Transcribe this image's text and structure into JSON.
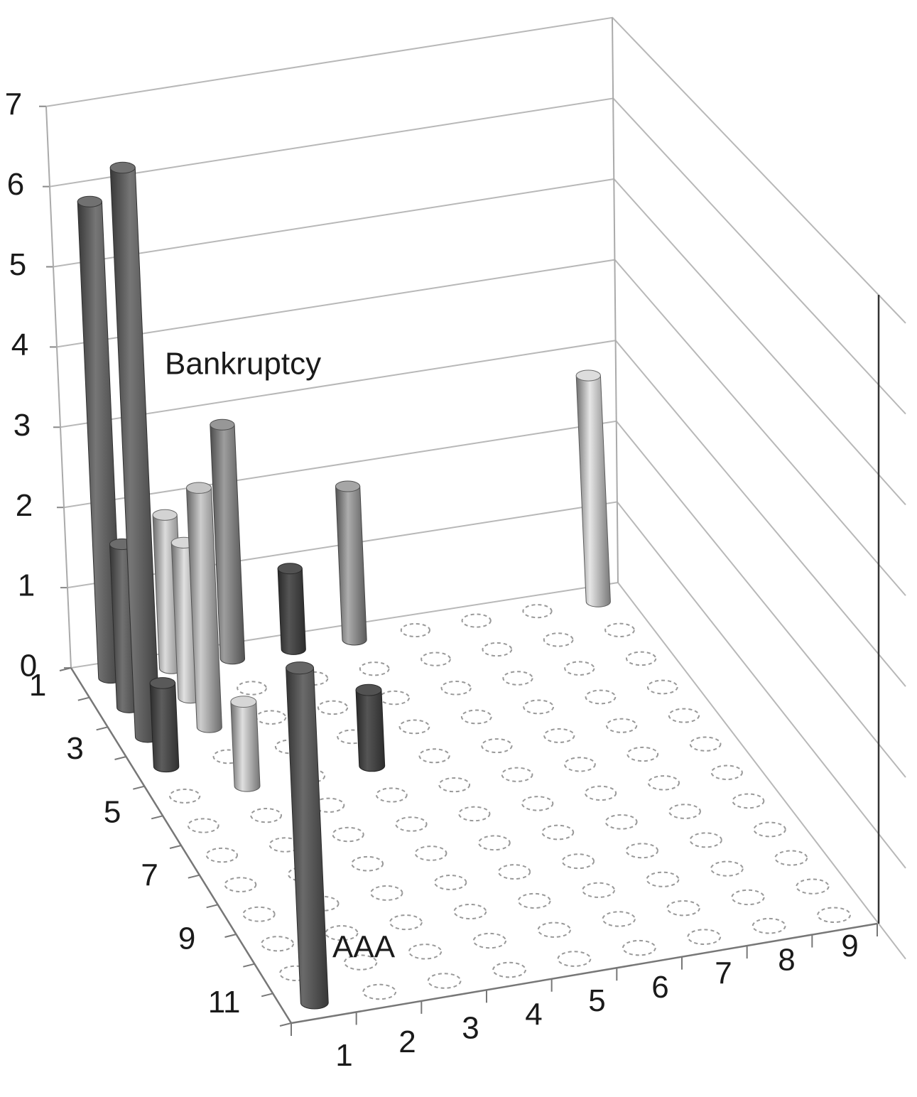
{
  "chart_data": {
    "type": "bar3d",
    "rows": [
      1,
      null,
      3,
      null,
      5,
      null,
      7,
      null,
      9,
      null,
      11,
      null
    ],
    "columns": [
      1,
      2,
      3,
      4,
      5,
      6,
      7,
      8,
      9
    ],
    "zlim": [
      0,
      7
    ],
    "zticks": [
      0,
      1,
      2,
      3,
      4,
      5,
      6,
      7
    ],
    "grid": true,
    "bars": [
      {
        "row": 1,
        "col": 1,
        "value": 5.9,
        "color": "#5e5e5e"
      },
      {
        "row": 2,
        "col": 1,
        "value": 2.0,
        "color": "#5a5a5a"
      },
      {
        "row": 3,
        "col": 1,
        "value": 6.9,
        "color": "#5e5e5e"
      },
      {
        "row": 4,
        "col": 1,
        "value": 1.0,
        "color": "#4a4a4a"
      },
      {
        "row": 1,
        "col": 2,
        "value": 1.9,
        "color": "#b0b0b0"
      },
      {
        "row": 2,
        "col": 2,
        "value": 1.9,
        "color": "#b4b4b4"
      },
      {
        "row": 3,
        "col": 2,
        "value": 2.9,
        "color": "#a4a4a4"
      },
      {
        "row": 1,
        "col": 3,
        "value": 2.9,
        "color": "#7e7e7e"
      },
      {
        "row": 5,
        "col": 2,
        "value": 1.0,
        "color": "#b2b2b2"
      },
      {
        "row": 1,
        "col": 4,
        "value": 1.0,
        "color": "#444444"
      },
      {
        "row": 1,
        "col": 5,
        "value": 1.9,
        "color": "#8a8a8a"
      },
      {
        "row": 5,
        "col": 4,
        "value": 0.9,
        "color": "#444444"
      },
      {
        "row": 12,
        "col": 1,
        "value": 3.7,
        "color": "#555555"
      },
      {
        "row": 1,
        "col": 9,
        "value": 2.8,
        "color": "#b8b8b8"
      }
    ],
    "annotations": [
      "Bankruptcy",
      "AAA"
    ]
  }
}
